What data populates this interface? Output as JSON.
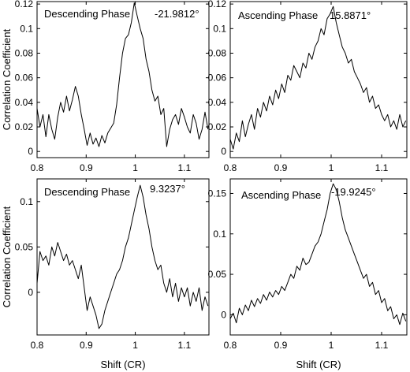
{
  "chart_data": [
    {
      "type": "line",
      "panel": "top-left",
      "annotation": "Descending Phase",
      "angle_label": "-21.9812°",
      "xlabel": "",
      "ylabel": "Correlation Coefficient",
      "xlim": [
        0.8,
        1.15
      ],
      "ylim": [
        -0.005,
        0.122
      ],
      "xticks": [
        0.8,
        0.9,
        1.0,
        1.1
      ],
      "xtick_labels": [
        "0.8",
        "0.9",
        "1",
        "1.1"
      ],
      "yticks": [
        0,
        0.02,
        0.04,
        0.06,
        0.08,
        0.1,
        0.12
      ],
      "ytick_labels": [
        "0",
        "0.02",
        "0.04",
        "0.06",
        "0.08",
        "0.1",
        "0.12"
      ],
      "series": [
        {
          "x": [
            0.8,
            0.806,
            0.812,
            0.818,
            0.824,
            0.83,
            0.836,
            0.842,
            0.848,
            0.854,
            0.86,
            0.866,
            0.872,
            0.878,
            0.884,
            0.89,
            0.896,
            0.902,
            0.908,
            0.914,
            0.92,
            0.926,
            0.932,
            0.938,
            0.944,
            0.95,
            0.956,
            0.962,
            0.968,
            0.974,
            0.98,
            0.986,
            0.992,
            0.998,
            1.004,
            1.01,
            1.016,
            1.022,
            1.028,
            1.034,
            1.04,
            1.046,
            1.052,
            1.058,
            1.064,
            1.07,
            1.076,
            1.082,
            1.088,
            1.094,
            1.1,
            1.106,
            1.112,
            1.118,
            1.124,
            1.13,
            1.136,
            1.142,
            1.148
          ],
          "y": [
            0.035,
            0.02,
            0.03,
            0.012,
            0.03,
            0.018,
            0.01,
            0.028,
            0.04,
            0.032,
            0.045,
            0.033,
            0.042,
            0.053,
            0.045,
            0.03,
            0.018,
            0.005,
            0.015,
            0.006,
            0.011,
            0.004,
            0.013,
            0.007,
            0.015,
            0.019,
            0.023,
            0.038,
            0.06,
            0.08,
            0.092,
            0.095,
            0.105,
            0.121,
            0.11,
            0.1,
            0.092,
            0.075,
            0.065,
            0.05,
            0.041,
            0.045,
            0.03,
            0.035,
            0.004,
            0.018,
            0.026,
            0.03,
            0.022,
            0.035,
            0.028,
            0.02,
            0.015,
            0.03,
            0.023,
            0.01,
            0.018,
            0.032,
            0.018
          ]
        }
      ]
    },
    {
      "type": "line",
      "panel": "top-right",
      "annotation": "Ascending Phase",
      "angle_label": "15.8871°",
      "xlabel": "",
      "ylabel": "",
      "xlim": [
        0.8,
        1.15
      ],
      "ylim": [
        -0.005,
        0.122
      ],
      "xticks": [
        0.8,
        0.9,
        1.0,
        1.1
      ],
      "xtick_labels": [
        "0.8",
        "0.9",
        "1",
        "1.1"
      ],
      "yticks": [
        0,
        0.02,
        0.04,
        0.06,
        0.08,
        0.1,
        0.12
      ],
      "ytick_labels": [
        "0",
        "0.02",
        "0.04",
        "0.06",
        "0.08",
        "0.1",
        "0.12"
      ],
      "series": [
        {
          "x": [
            0.8,
            0.806,
            0.812,
            0.818,
            0.824,
            0.83,
            0.836,
            0.842,
            0.848,
            0.854,
            0.86,
            0.866,
            0.872,
            0.878,
            0.884,
            0.89,
            0.896,
            0.902,
            0.908,
            0.914,
            0.92,
            0.926,
            0.932,
            0.938,
            0.944,
            0.95,
            0.956,
            0.962,
            0.968,
            0.974,
            0.98,
            0.986,
            0.992,
            0.998,
            1.004,
            1.01,
            1.016,
            1.022,
            1.028,
            1.034,
            1.04,
            1.046,
            1.052,
            1.058,
            1.064,
            1.07,
            1.076,
            1.082,
            1.088,
            1.094,
            1.1,
            1.106,
            1.112,
            1.118,
            1.124,
            1.13,
            1.136,
            1.142,
            1.148
          ],
          "y": [
            0.01,
            0.002,
            0.015,
            0.008,
            0.025,
            0.012,
            0.022,
            0.03,
            0.018,
            0.035,
            0.028,
            0.04,
            0.033,
            0.045,
            0.038,
            0.05,
            0.043,
            0.055,
            0.048,
            0.062,
            0.058,
            0.07,
            0.065,
            0.06,
            0.072,
            0.068,
            0.08,
            0.075,
            0.085,
            0.09,
            0.1,
            0.095,
            0.108,
            0.112,
            0.118,
            0.105,
            0.095,
            0.085,
            0.08,
            0.072,
            0.075,
            0.065,
            0.06,
            0.055,
            0.048,
            0.052,
            0.04,
            0.045,
            0.035,
            0.038,
            0.03,
            0.025,
            0.03,
            0.02,
            0.025,
            0.018,
            0.03,
            0.02,
            0.025
          ]
        }
      ]
    },
    {
      "type": "line",
      "panel": "bottom-left",
      "annotation": "Descending Phase",
      "angle_label": "9.3237°",
      "xlabel": "Shift (CR)",
      "ylabel": "Correlation Coefficient",
      "xlim": [
        0.8,
        1.15
      ],
      "ylim": [
        -0.047,
        0.125
      ],
      "xticks": [
        0.8,
        0.9,
        1.0,
        1.1
      ],
      "xtick_labels": [
        "0.8",
        "0.9",
        "1",
        "1.1"
      ],
      "yticks": [
        0,
        0.05,
        0.1
      ],
      "ytick_labels": [
        "0",
        "0.05",
        "0.1"
      ],
      "series": [
        {
          "x": [
            0.8,
            0.806,
            0.812,
            0.818,
            0.824,
            0.83,
            0.836,
            0.842,
            0.848,
            0.854,
            0.86,
            0.866,
            0.872,
            0.878,
            0.884,
            0.89,
            0.896,
            0.902,
            0.908,
            0.914,
            0.92,
            0.926,
            0.932,
            0.938,
            0.944,
            0.95,
            0.956,
            0.962,
            0.968,
            0.974,
            0.98,
            0.986,
            0.992,
            0.998,
            1.004,
            1.01,
            1.016,
            1.022,
            1.028,
            1.034,
            1.04,
            1.046,
            1.052,
            1.058,
            1.064,
            1.07,
            1.076,
            1.082,
            1.088,
            1.094,
            1.1,
            1.106,
            1.112,
            1.118,
            1.124,
            1.13,
            1.136,
            1.142,
            1.148
          ],
          "y": [
            0.01,
            0.045,
            0.035,
            0.04,
            0.03,
            0.05,
            0.04,
            0.055,
            0.045,
            0.035,
            0.042,
            0.03,
            0.035,
            0.025,
            0.015,
            0.03,
            0.005,
            -0.02,
            -0.005,
            -0.015,
            -0.025,
            -0.04,
            -0.035,
            -0.02,
            -0.01,
            0.0,
            0.01,
            0.02,
            0.025,
            0.035,
            0.05,
            0.06,
            0.075,
            0.09,
            0.105,
            0.118,
            0.105,
            0.085,
            0.07,
            0.05,
            0.035,
            0.025,
            0.03,
            0.01,
            0.0,
            0.015,
            -0.005,
            0.01,
            -0.01,
            0.005,
            -0.005,
            0.005,
            -0.015,
            0.0,
            -0.01,
            0.005,
            -0.02,
            -0.005,
            -0.015
          ]
        }
      ]
    },
    {
      "type": "line",
      "panel": "bottom-right",
      "annotation": "Ascending Phase",
      "angle_label": "-19.9245°",
      "xlabel": "Shift (CR)",
      "ylabel": "",
      "xlim": [
        0.8,
        1.15
      ],
      "ylim": [
        -0.025,
        0.168
      ],
      "xticks": [
        0.8,
        0.9,
        1.0,
        1.1
      ],
      "xtick_labels": [
        "0.8",
        "0.9",
        "1",
        "1.1"
      ],
      "yticks": [
        0,
        0.05,
        0.1,
        0.15
      ],
      "ytick_labels": [
        "0",
        "0.05",
        "0.1",
        "0.15"
      ],
      "series": [
        {
          "x": [
            0.8,
            0.806,
            0.812,
            0.818,
            0.824,
            0.83,
            0.836,
            0.842,
            0.848,
            0.854,
            0.86,
            0.866,
            0.872,
            0.878,
            0.884,
            0.89,
            0.896,
            0.902,
            0.908,
            0.914,
            0.92,
            0.926,
            0.932,
            0.938,
            0.944,
            0.95,
            0.956,
            0.962,
            0.968,
            0.974,
            0.98,
            0.986,
            0.992,
            0.998,
            1.004,
            1.01,
            1.016,
            1.022,
            1.028,
            1.034,
            1.04,
            1.046,
            1.052,
            1.058,
            1.064,
            1.07,
            1.076,
            1.082,
            1.088,
            1.094,
            1.1,
            1.106,
            1.112,
            1.118,
            1.124,
            1.13,
            1.136,
            1.142,
            1.148
          ],
          "y": [
            -0.005,
            0.002,
            -0.01,
            0.008,
            0.0,
            0.012,
            0.005,
            0.018,
            0.01,
            0.02,
            0.014,
            0.025,
            0.018,
            0.028,
            0.022,
            0.03,
            0.025,
            0.035,
            0.03,
            0.04,
            0.05,
            0.045,
            0.06,
            0.055,
            0.07,
            0.062,
            0.065,
            0.075,
            0.085,
            0.09,
            0.1,
            0.115,
            0.13,
            0.15,
            0.162,
            0.155,
            0.14,
            0.12,
            0.105,
            0.095,
            0.085,
            0.075,
            0.065,
            0.055,
            0.045,
            0.05,
            0.035,
            0.04,
            0.025,
            0.03,
            0.015,
            0.02,
            0.005,
            0.01,
            -0.005,
            0.0,
            -0.012,
            0.002,
            -0.008
          ]
        }
      ]
    }
  ]
}
